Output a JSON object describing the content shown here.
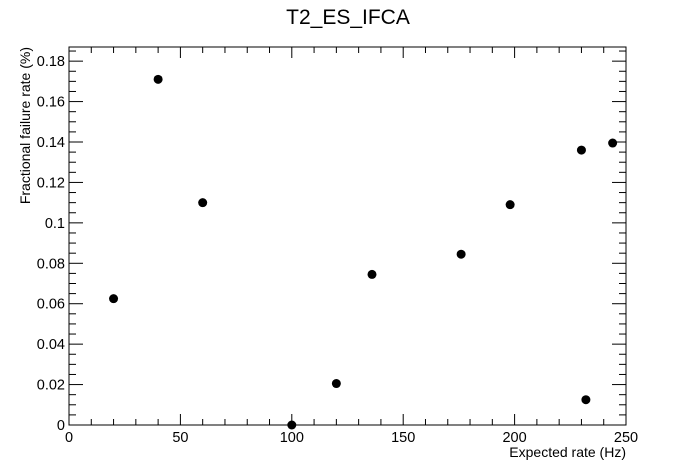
{
  "chart_data": {
    "type": "scatter",
    "title": "T2_ES_IFCA",
    "xlabel": "Expected rate (Hz)",
    "ylabel": "Fractional failure rate (%)",
    "xlim": [
      0,
      250
    ],
    "ylim": [
      0,
      0.187
    ],
    "x_ticks": [
      "0",
      "50",
      "100",
      "150",
      "200",
      "250"
    ],
    "y_ticks": [
      "0",
      "0.02",
      "0.04",
      "0.06",
      "0.08",
      "0.1",
      "0.12",
      "0.14",
      "0.16",
      "0.18"
    ],
    "grid": false,
    "points": [
      {
        "x": 20,
        "y": 0.0625
      },
      {
        "x": 40,
        "y": 0.171
      },
      {
        "x": 60,
        "y": 0.11
      },
      {
        "x": 100,
        "y": 0.0
      },
      {
        "x": 120,
        "y": 0.0205
      },
      {
        "x": 136,
        "y": 0.0745
      },
      {
        "x": 176,
        "y": 0.0845
      },
      {
        "x": 198,
        "y": 0.109
      },
      {
        "x": 230,
        "y": 0.136
      },
      {
        "x": 232,
        "y": 0.0125
      },
      {
        "x": 244,
        "y": 0.1395
      }
    ],
    "marker_color": "#000000"
  }
}
